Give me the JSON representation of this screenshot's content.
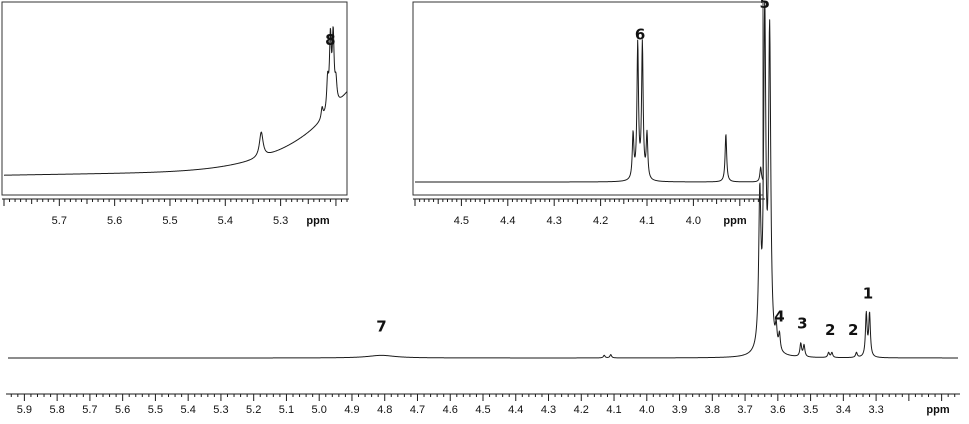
{
  "chart_data": [
    {
      "type": "line",
      "unit_label": "ppm",
      "x_reversed": true,
      "xlim": [
        5.95,
        3.05
      ],
      "ticks": [
        5.9,
        5.8,
        5.7,
        5.6,
        5.5,
        5.4,
        5.3,
        5.2,
        5.1,
        5.0,
        4.9,
        4.8,
        4.7,
        4.6,
        4.5,
        4.4,
        4.3,
        4.2,
        4.1,
        4.0,
        3.9,
        3.8,
        3.7,
        3.6,
        3.5,
        3.4,
        3.3
      ],
      "tick_labels": [
        "5.9",
        "5.8",
        "5.7",
        "5.6",
        "5.5",
        "5.4",
        "5.3",
        "5.2",
        "5.1",
        "5.0",
        "4.9",
        "4.8",
        "4.7",
        "4.6",
        "4.5",
        "4.4",
        "4.3",
        "4.2",
        "4.1",
        "4.0",
        "3.9",
        "3.8",
        "3.7",
        "3.6",
        "3.5",
        "3.4",
        "3.3"
      ],
      "peaks": [
        {
          "label": "7",
          "ppm": 4.81,
          "height": 0.008,
          "width": 0.05,
          "label_ppm": 4.81,
          "label_height": 0.08
        },
        {
          "label": "",
          "ppm": 4.11,
          "height": 0.01,
          "width": 0.003
        },
        {
          "label": "",
          "ppm": 4.13,
          "height": 0.008,
          "width": 0.003
        },
        {
          "label": "5",
          "ppm": 3.64,
          "height": 1.0,
          "width": 0.004,
          "label_ppm": 3.64,
          "label_height": 1.06
        },
        {
          "label": "",
          "ppm": 3.625,
          "height": 0.95,
          "width": 0.004
        },
        {
          "label": "",
          "ppm": 3.655,
          "height": 0.45,
          "width": 0.004
        },
        {
          "label": "4",
          "ppm": 3.605,
          "height": 0.06,
          "width": 0.003,
          "label_ppm": 3.595,
          "label_height": 0.11
        },
        {
          "label": "",
          "ppm": 3.595,
          "height": 0.05,
          "width": 0.003
        },
        {
          "label": "3",
          "ppm": 3.53,
          "height": 0.04,
          "width": 0.003,
          "label_ppm": 3.525,
          "label_height": 0.09
        },
        {
          "label": "",
          "ppm": 3.52,
          "height": 0.035,
          "width": 0.003
        },
        {
          "label": "2",
          "ppm": 3.445,
          "height": 0.015,
          "width": 0.003,
          "label_ppm": 3.44,
          "label_height": 0.07
        },
        {
          "label": "",
          "ppm": 3.435,
          "height": 0.015,
          "width": 0.003
        },
        {
          "label": "2",
          "ppm": 3.36,
          "height": 0.015,
          "width": 0.003,
          "label_ppm": 3.37,
          "label_height": 0.07
        },
        {
          "label": "1",
          "ppm": 3.33,
          "height": 0.13,
          "width": 0.003,
          "label_ppm": 3.325,
          "label_height": 0.18
        },
        {
          "label": "",
          "ppm": 3.32,
          "height": 0.13,
          "width": 0.003
        }
      ]
    },
    {
      "type": "line",
      "unit_label": "ppm",
      "x_reversed": true,
      "xlim": [
        5.8,
        5.18
      ],
      "ticks": [
        5.7,
        5.6,
        5.5,
        5.4,
        5.3
      ],
      "tick_labels": [
        "5.7",
        "5.6",
        "5.5",
        "5.4",
        "5.3"
      ],
      "baseline_curve": "rising-toward-low-ppm",
      "peaks": [
        {
          "label": "",
          "ppm": 5.335,
          "height": 0.18,
          "width": 0.004
        },
        {
          "label": "8",
          "ppm": 5.21,
          "height": 0.5,
          "width": 0.002,
          "label_ppm": 5.21,
          "label_height": 0.95
        },
        {
          "label": "",
          "ppm": 5.205,
          "height": 0.5,
          "width": 0.002
        },
        {
          "label": "",
          "ppm": 5.215,
          "height": 0.22,
          "width": 0.002
        },
        {
          "label": "",
          "ppm": 5.2,
          "height": 0.15,
          "width": 0.002
        },
        {
          "label": "",
          "ppm": 5.225,
          "height": 0.08,
          "width": 0.002
        }
      ]
    },
    {
      "type": "line",
      "unit_label": "ppm",
      "x_reversed": true,
      "xlim": [
        4.6,
        3.85
      ],
      "ticks": [
        4.5,
        4.4,
        4.3,
        4.2,
        4.1,
        4.0
      ],
      "tick_labels": [
        "4.5",
        "4.4",
        "4.3",
        "4.2",
        "4.1",
        "4.0"
      ],
      "peaks": [
        {
          "label": "6",
          "ppm": 4.12,
          "height": 0.9,
          "width": 0.002,
          "label_ppm": 4.115,
          "label_height": 0.95
        },
        {
          "label": "",
          "ppm": 4.11,
          "height": 0.9,
          "width": 0.002
        },
        {
          "label": "",
          "ppm": 4.13,
          "height": 0.3,
          "width": 0.002
        },
        {
          "label": "",
          "ppm": 4.1,
          "height": 0.3,
          "width": 0.002
        },
        {
          "label": "",
          "ppm": 3.93,
          "height": 0.32,
          "width": 0.002
        },
        {
          "label": "",
          "ppm": 3.855,
          "height": 0.1,
          "width": 0.002
        }
      ]
    }
  ]
}
